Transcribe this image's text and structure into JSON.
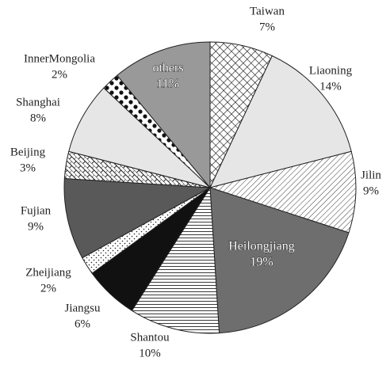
{
  "chart_data": {
    "type": "pie",
    "categories": [
      "Taiwan",
      "Liaoning",
      "Jilin",
      "Heilongjiang",
      "Shantou",
      "Jiangsu",
      "Zheijiang",
      "Fujian",
      "Beijing",
      "Shanghai",
      "InnerMongolia",
      "others"
    ],
    "values": [
      7,
      14,
      9,
      19,
      10,
      6,
      2,
      9,
      3,
      8,
      2,
      11
    ],
    "value_labels": [
      "7%",
      "14%",
      "9%",
      "19%",
      "10%",
      "6%",
      "2%",
      "9%",
      "3%",
      "8%",
      "2%",
      "11%"
    ],
    "colors": [
      "#ffffff",
      "#e6e6e6",
      "#ffffff",
      "#6e6e6e",
      "#ffffff",
      "#111111",
      "#ffffff",
      "#595959",
      "#ffffff",
      "#e6e6e6",
      "#ffffff",
      "#999999"
    ],
    "patterns": [
      "crosshatch",
      "none",
      "diagonal",
      "none",
      "horizontal",
      "none",
      "dots",
      "none",
      "brick",
      "none",
      "bigdots",
      "none"
    ]
  }
}
